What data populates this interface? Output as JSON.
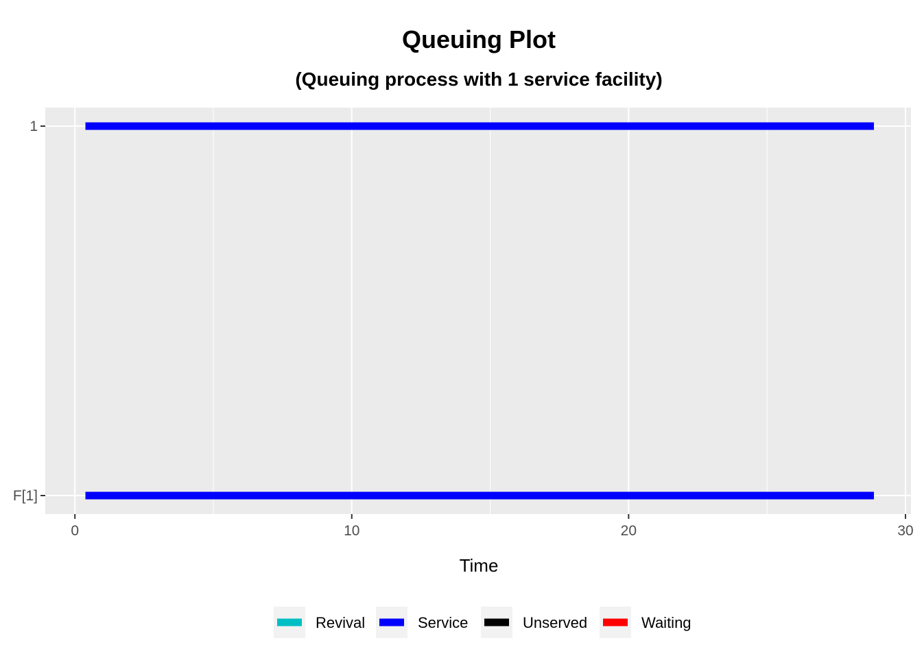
{
  "chart_data": {
    "type": "gantt",
    "title": "Queuing Plot",
    "subtitle": "(Queuing process with 1 service facility)",
    "xlabel": "Time",
    "ylabel": "",
    "xlim": [
      -1.07,
      30.2
    ],
    "x_ticks": [
      0,
      10,
      20,
      30
    ],
    "x_tick_labels": [
      "0",
      "10",
      "20",
      "30"
    ],
    "y_categories": [
      "F[1]",
      "1"
    ],
    "grid": true,
    "legend_position": "bottom",
    "legend": [
      {
        "name": "Revival",
        "color": "#00bfc4"
      },
      {
        "name": "Service",
        "color": "#0000ff"
      },
      {
        "name": "Unserved",
        "color": "#000000"
      },
      {
        "name": "Waiting",
        "color": "#ff0000"
      }
    ],
    "segments": [
      {
        "row": "1",
        "status": "Service",
        "start": 0.38,
        "end": 28.86
      },
      {
        "row": "F[1]",
        "status": "Service",
        "start": 0.38,
        "end": 28.86
      }
    ]
  },
  "colors": {
    "panel_background": "#ebebeb",
    "grid_line": "#ffffff",
    "legend_key_background": "#f2f2f2"
  }
}
